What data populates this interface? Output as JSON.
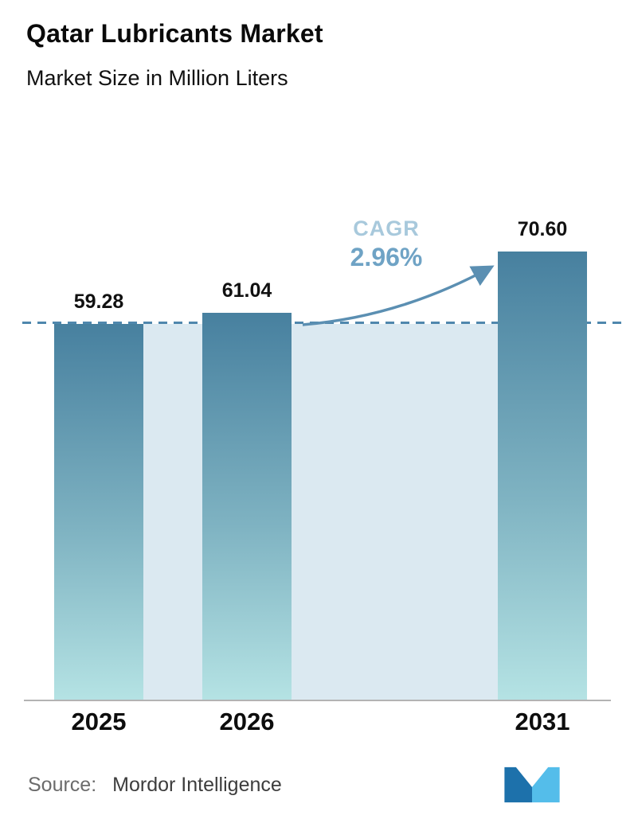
{
  "header": {
    "title": "Qatar Lubricants Market",
    "subtitle": "Market Size in Million Liters"
  },
  "chart_data": {
    "type": "bar",
    "title": "Qatar Lubricants Market",
    "subtitle": "Market Size in Million Liters",
    "unit": "Million Liters",
    "categories": [
      "2025",
      "2026",
      "2031"
    ],
    "values": [
      59.28,
      61.04,
      70.6
    ],
    "value_labels": [
      "59.28",
      "61.04",
      "70.60"
    ],
    "ylim": [
      0,
      75
    ],
    "grid": "off",
    "legend": "none",
    "baseline_value": 59.28,
    "annotations": {
      "cagr_label": "CAGR",
      "cagr_value": "2.96%"
    },
    "colors": {
      "bar_gradient_top": "#47809f",
      "bar_gradient_bottom": "#b5e3e4",
      "band_fill": "#dbe9f1",
      "dashed_line": "#4f87ad",
      "arrow": "#5b8fb2",
      "cagr_label_color": "#a8c9dc",
      "cagr_value_color": "#6fa3c5"
    }
  },
  "footer": {
    "source_label": "Source:",
    "source_value": "Mordor Intelligence",
    "logo_name": "mordor-intelligence-logo",
    "logo_colors": {
      "dark": "#1d71ab",
      "light": "#54bdea"
    }
  }
}
